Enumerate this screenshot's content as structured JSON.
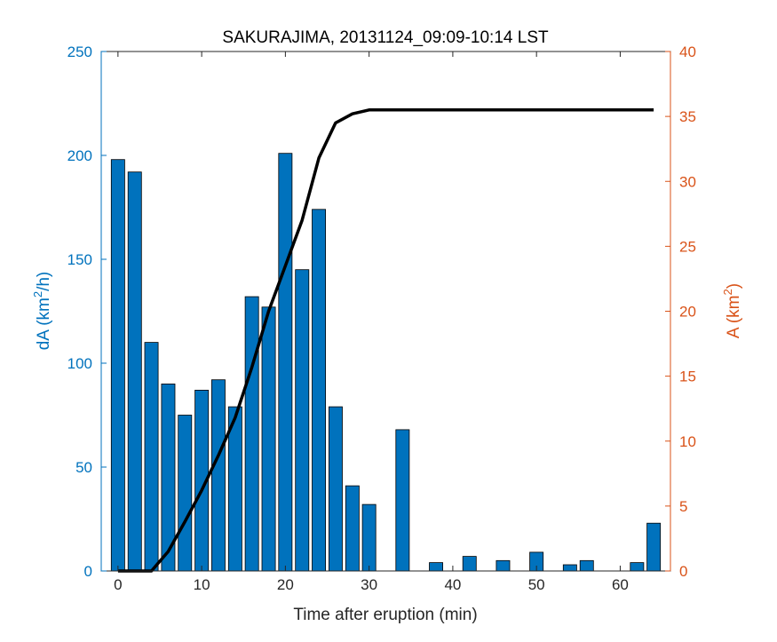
{
  "chart_data": {
    "type": "bar",
    "title": "SAKURAJIMA, 20131124_09:09-10:14 LST",
    "xlabel": "Time after eruption (min)",
    "ylabel_left": {
      "prefix": "dA (km",
      "sup": "2",
      "suffix": "/h)"
    },
    "ylabel_right": {
      "prefix": "A (km",
      "sup": "2",
      "suffix": ")"
    },
    "xlim": [
      -2,
      66
    ],
    "ylim_left": [
      0,
      250
    ],
    "ylim_right": [
      0,
      40
    ],
    "x_ticks": [
      "0",
      "10",
      "20",
      "30",
      "40",
      "50",
      "60"
    ],
    "y_left_ticks": [
      "0",
      "50",
      "100",
      "150",
      "200",
      "250"
    ],
    "y_right_ticks": [
      "0",
      "5",
      "10",
      "15",
      "20",
      "25",
      "30",
      "35",
      "40"
    ],
    "grid": false,
    "series": [
      {
        "kind": "bar",
        "axis": "left",
        "color": "#0072BD",
        "x": [
          0,
          2,
          4,
          6,
          8,
          10,
          12,
          14,
          16,
          18,
          20,
          22,
          24,
          26,
          28,
          30,
          34,
          38,
          42,
          46,
          50,
          54,
          56,
          62,
          64
        ],
        "values": [
          198,
          192,
          110,
          90,
          75,
          87,
          92,
          79,
          132,
          127,
          201,
          145,
          174,
          79,
          41,
          32,
          68,
          4,
          7,
          5,
          9,
          3,
          5,
          4,
          23
        ]
      },
      {
        "kind": "line",
        "axis": "right",
        "color": "#000000",
        "x": [
          0,
          2,
          4,
          6,
          8,
          10,
          12,
          14,
          16,
          18,
          20,
          22,
          24,
          26,
          28,
          30,
          34,
          38,
          42,
          46,
          50,
          54,
          56,
          62,
          64
        ],
        "values": [
          0.0,
          0.0,
          0.0,
          1.5,
          3.8,
          6.2,
          8.9,
          11.8,
          15.7,
          20.0,
          23.5,
          27.0,
          31.8,
          34.5,
          35.2,
          35.5,
          35.5,
          35.5,
          35.5,
          35.5,
          35.5,
          35.5,
          35.5,
          35.5,
          35.5
        ]
      }
    ]
  }
}
